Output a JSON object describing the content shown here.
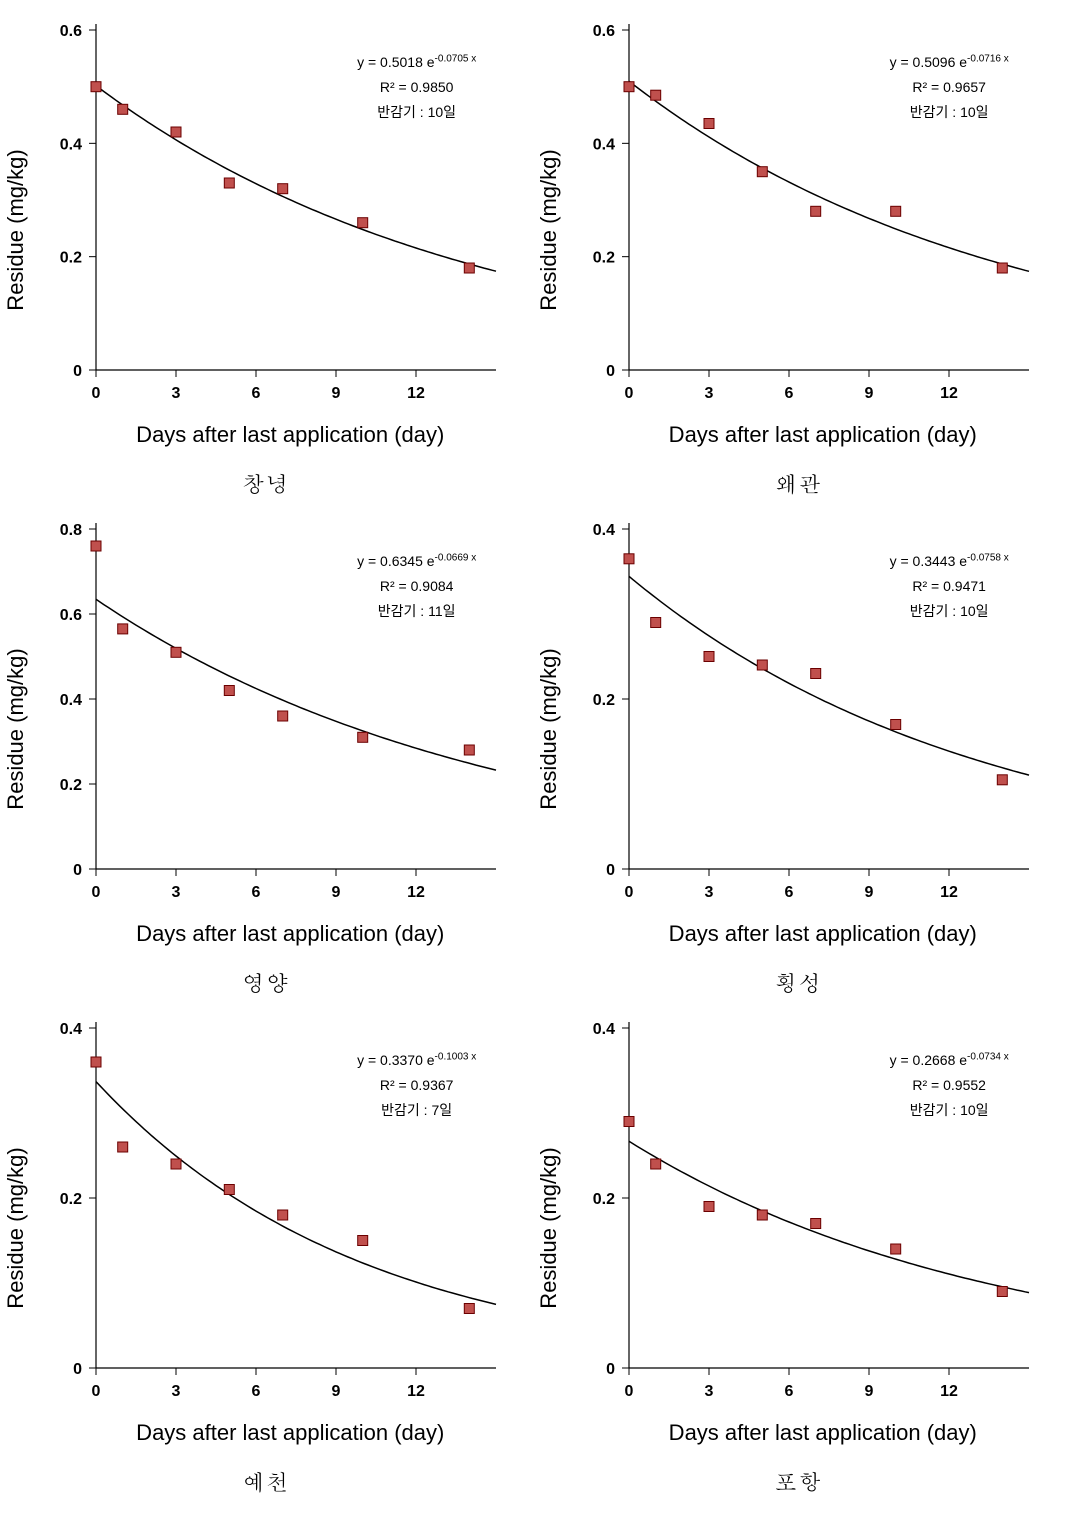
{
  "global": {
    "xlabel": "Days after last application (day)",
    "ylabel": "Residue (mg/kg)",
    "x_ticks": [
      0,
      3,
      6,
      9,
      12
    ],
    "x_max": 15,
    "marker_fill": "#c0504d",
    "marker_stroke": "#6b0000",
    "marker_size": 10,
    "curve_color": "#000000",
    "background": "#ffffff",
    "label_fontsize": 22,
    "tick_fontsize": 16
  },
  "charts": [
    {
      "caption": "창녕",
      "eq_a": "0.5018",
      "eq_b": "-0.0705",
      "r2": "0.9850",
      "halflife": "반감기 : 10일",
      "ymax": 0.6,
      "ytick_step": 0.2,
      "curve_A": 0.5018,
      "curve_k": 0.0705,
      "points_x": [
        0,
        1,
        3,
        5,
        7,
        10,
        14
      ],
      "points_y": [
        0.5,
        0.46,
        0.42,
        0.33,
        0.32,
        0.26,
        0.18
      ]
    },
    {
      "caption": "왜관",
      "eq_a": "0.5096",
      "eq_b": "-0.0716",
      "r2": "0.9657",
      "halflife": "반감기 : 10일",
      "ymax": 0.6,
      "ytick_step": 0.2,
      "curve_A": 0.5096,
      "curve_k": 0.0716,
      "points_x": [
        0,
        1,
        3,
        5,
        7,
        10,
        14
      ],
      "points_y": [
        0.5,
        0.485,
        0.435,
        0.35,
        0.28,
        0.28,
        0.18
      ]
    },
    {
      "caption": "영양",
      "eq_a": "0.6345",
      "eq_b": "-0.0669",
      "r2": "0.9084",
      "halflife": "반감기 : 11일",
      "ymax": 0.8,
      "ytick_step": 0.2,
      "curve_A": 0.6345,
      "curve_k": 0.0669,
      "points_x": [
        0,
        1,
        3,
        5,
        7,
        10,
        14
      ],
      "points_y": [
        0.76,
        0.565,
        0.51,
        0.42,
        0.36,
        0.31,
        0.28
      ]
    },
    {
      "caption": "횡성",
      "eq_a": "0.3443",
      "eq_b": "-0.0758",
      "r2": "0.9471",
      "halflife": "반감기 : 10일",
      "ymax": 0.4,
      "ytick_step": 0.2,
      "curve_A": 0.3443,
      "curve_k": 0.0758,
      "points_x": [
        0,
        1,
        3,
        5,
        7,
        10,
        14
      ],
      "points_y": [
        0.365,
        0.29,
        0.25,
        0.24,
        0.23,
        0.17,
        0.105
      ]
    },
    {
      "caption": "예천",
      "eq_a": "0.3370",
      "eq_b": "-0.1003",
      "r2": "0.9367",
      "halflife": "반감기 : 7일",
      "ymax": 0.4,
      "ytick_step": 0.2,
      "curve_A": 0.337,
      "curve_k": 0.1003,
      "points_x": [
        0,
        1,
        3,
        5,
        7,
        10,
        14
      ],
      "points_y": [
        0.36,
        0.26,
        0.24,
        0.21,
        0.18,
        0.15,
        0.07
      ]
    },
    {
      "caption": "포항",
      "eq_a": "0.2668",
      "eq_b": "-0.0734",
      "r2": "0.9552",
      "halflife": "반감기 : 10일",
      "ymax": 0.4,
      "ytick_step": 0.2,
      "curve_A": 0.2668,
      "curve_k": 0.0734,
      "points_x": [
        0,
        1,
        3,
        5,
        7,
        10,
        14
      ],
      "points_y": [
        0.29,
        0.24,
        0.19,
        0.18,
        0.17,
        0.14,
        0.09
      ]
    }
  ]
}
